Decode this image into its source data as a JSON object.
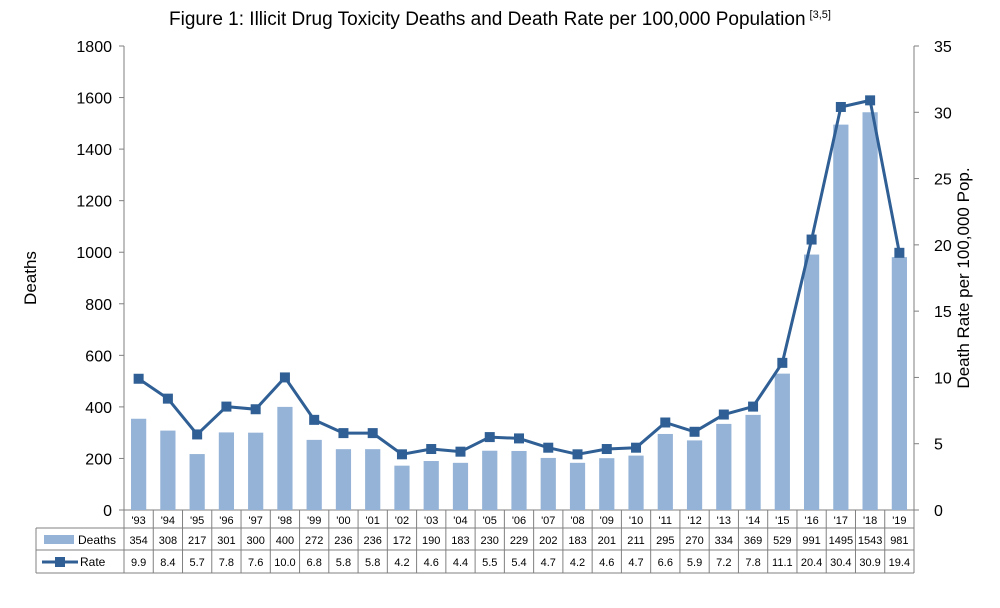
{
  "chart_data": {
    "type": "bar+line",
    "title": "Figure 1: Illicit Drug Toxicity Deaths and Death Rate per 100,000 Population",
    "title_superscript": "[3,5]",
    "categories": [
      "'93",
      "'94",
      "'95",
      "'96",
      "'97",
      "'98",
      "'99",
      "'00",
      "'01",
      "'02",
      "'03",
      "'04",
      "'05",
      "'06",
      "'07",
      "'08",
      "'09",
      "'10",
      "'11",
      "'12",
      "'13",
      "'14",
      "'15",
      "'16",
      "'17",
      "'18",
      "'19"
    ],
    "series": [
      {
        "name": "Deaths",
        "type": "bar",
        "axis": "left",
        "color": "#95b3d7",
        "values": [
          354,
          308,
          217,
          301,
          300,
          400,
          272,
          236,
          236,
          172,
          190,
          183,
          230,
          229,
          202,
          183,
          201,
          211,
          295,
          270,
          334,
          369,
          529,
          991,
          1495,
          1543,
          981
        ]
      },
      {
        "name": "Rate",
        "type": "line",
        "axis": "right",
        "color": "#2f5f94",
        "marker": "square",
        "values": [
          9.9,
          8.4,
          5.7,
          7.8,
          7.6,
          10.0,
          6.8,
          5.8,
          5.8,
          4.2,
          4.6,
          4.4,
          5.5,
          5.4,
          4.7,
          4.2,
          4.6,
          4.7,
          6.6,
          5.9,
          7.2,
          7.8,
          11.1,
          20.4,
          30.4,
          30.9,
          19.4
        ],
        "labels": [
          "9.9",
          "8.4",
          "5.7",
          "7.8",
          "7.6",
          "10.0",
          "6.8",
          "5.8",
          "5.8",
          "4.2",
          "4.6",
          "4.4",
          "5.5",
          "5.4",
          "4.7",
          "4.2",
          "4.6",
          "4.7",
          "6.6",
          "5.9",
          "7.2",
          "7.8",
          "11.1",
          "20.4",
          "30.4",
          "30.9",
          "19.4"
        ]
      }
    ],
    "ylabel": "Deaths",
    "y2label": "Death Rate per 100,000 Pop.",
    "ylim": [
      0,
      1800
    ],
    "yticks": [
      0,
      200,
      400,
      600,
      800,
      1000,
      1200,
      1400,
      1600,
      1800
    ],
    "y2lim": [
      0,
      35
    ],
    "y2ticks": [
      0,
      5,
      10,
      15,
      20,
      25,
      30,
      35
    ],
    "grid": false,
    "data_table": true,
    "legend_placement": "data-table"
  }
}
